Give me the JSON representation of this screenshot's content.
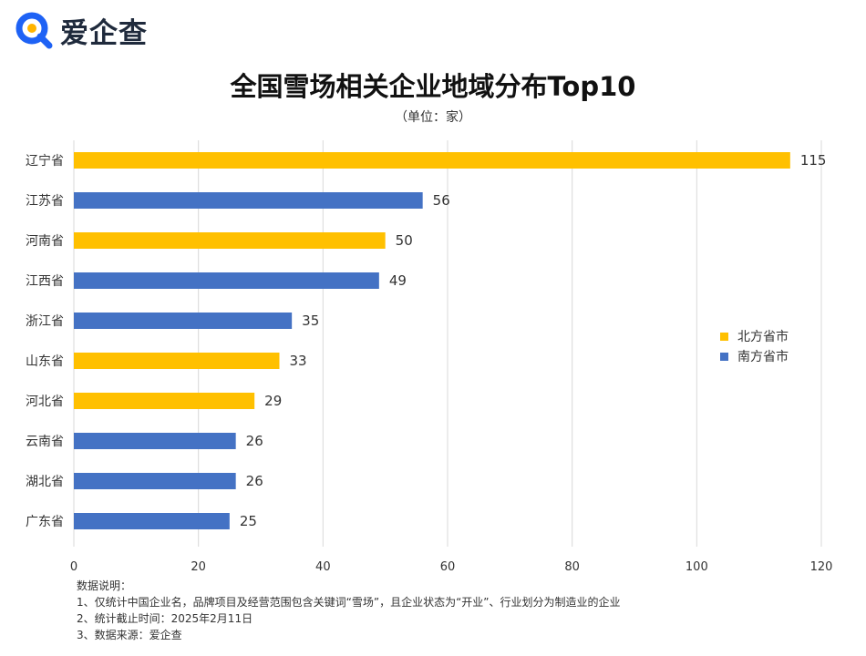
{
  "logo": {
    "text": "爱企查",
    "icon": "magnifier-q-icon"
  },
  "colors": {
    "north": "#FFC000",
    "south": "#4472C4",
    "grid": "#d9d9d9",
    "brand_blue": "#1e62f5",
    "brand_yellow": "#ffb400"
  },
  "legend": {
    "north_label": "北方省市",
    "south_label": "南方省市"
  },
  "notes": {
    "heading": "数据说明：",
    "line1": "1、仅统计中国企业名，品牌项目及经营范围包含关键词“雪场”，且企业状态为“开业”、行业划分为制造业的企业",
    "line2": "2、统计截止时间：2025年2月11日",
    "line3": "3、数据来源：爱企查"
  },
  "chart_data": {
    "type": "bar",
    "orientation": "horizontal",
    "title": "全国雪场相关企业地域分布Top10",
    "subtitle": "（单位：家）",
    "categories": [
      "辽宁省",
      "江苏省",
      "河南省",
      "江西省",
      "浙江省",
      "山东省",
      "河北省",
      "云南省",
      "湖北省",
      "广东省"
    ],
    "values": [
      115,
      56,
      50,
      49,
      35,
      33,
      29,
      26,
      26,
      25
    ],
    "groups": [
      "north",
      "south",
      "north",
      "south",
      "south",
      "north",
      "north",
      "south",
      "south",
      "south"
    ],
    "xlim": [
      0,
      120
    ],
    "xticks": [
      0,
      20,
      40,
      60,
      80,
      100,
      120
    ],
    "grid": true,
    "legend_position": "right"
  }
}
